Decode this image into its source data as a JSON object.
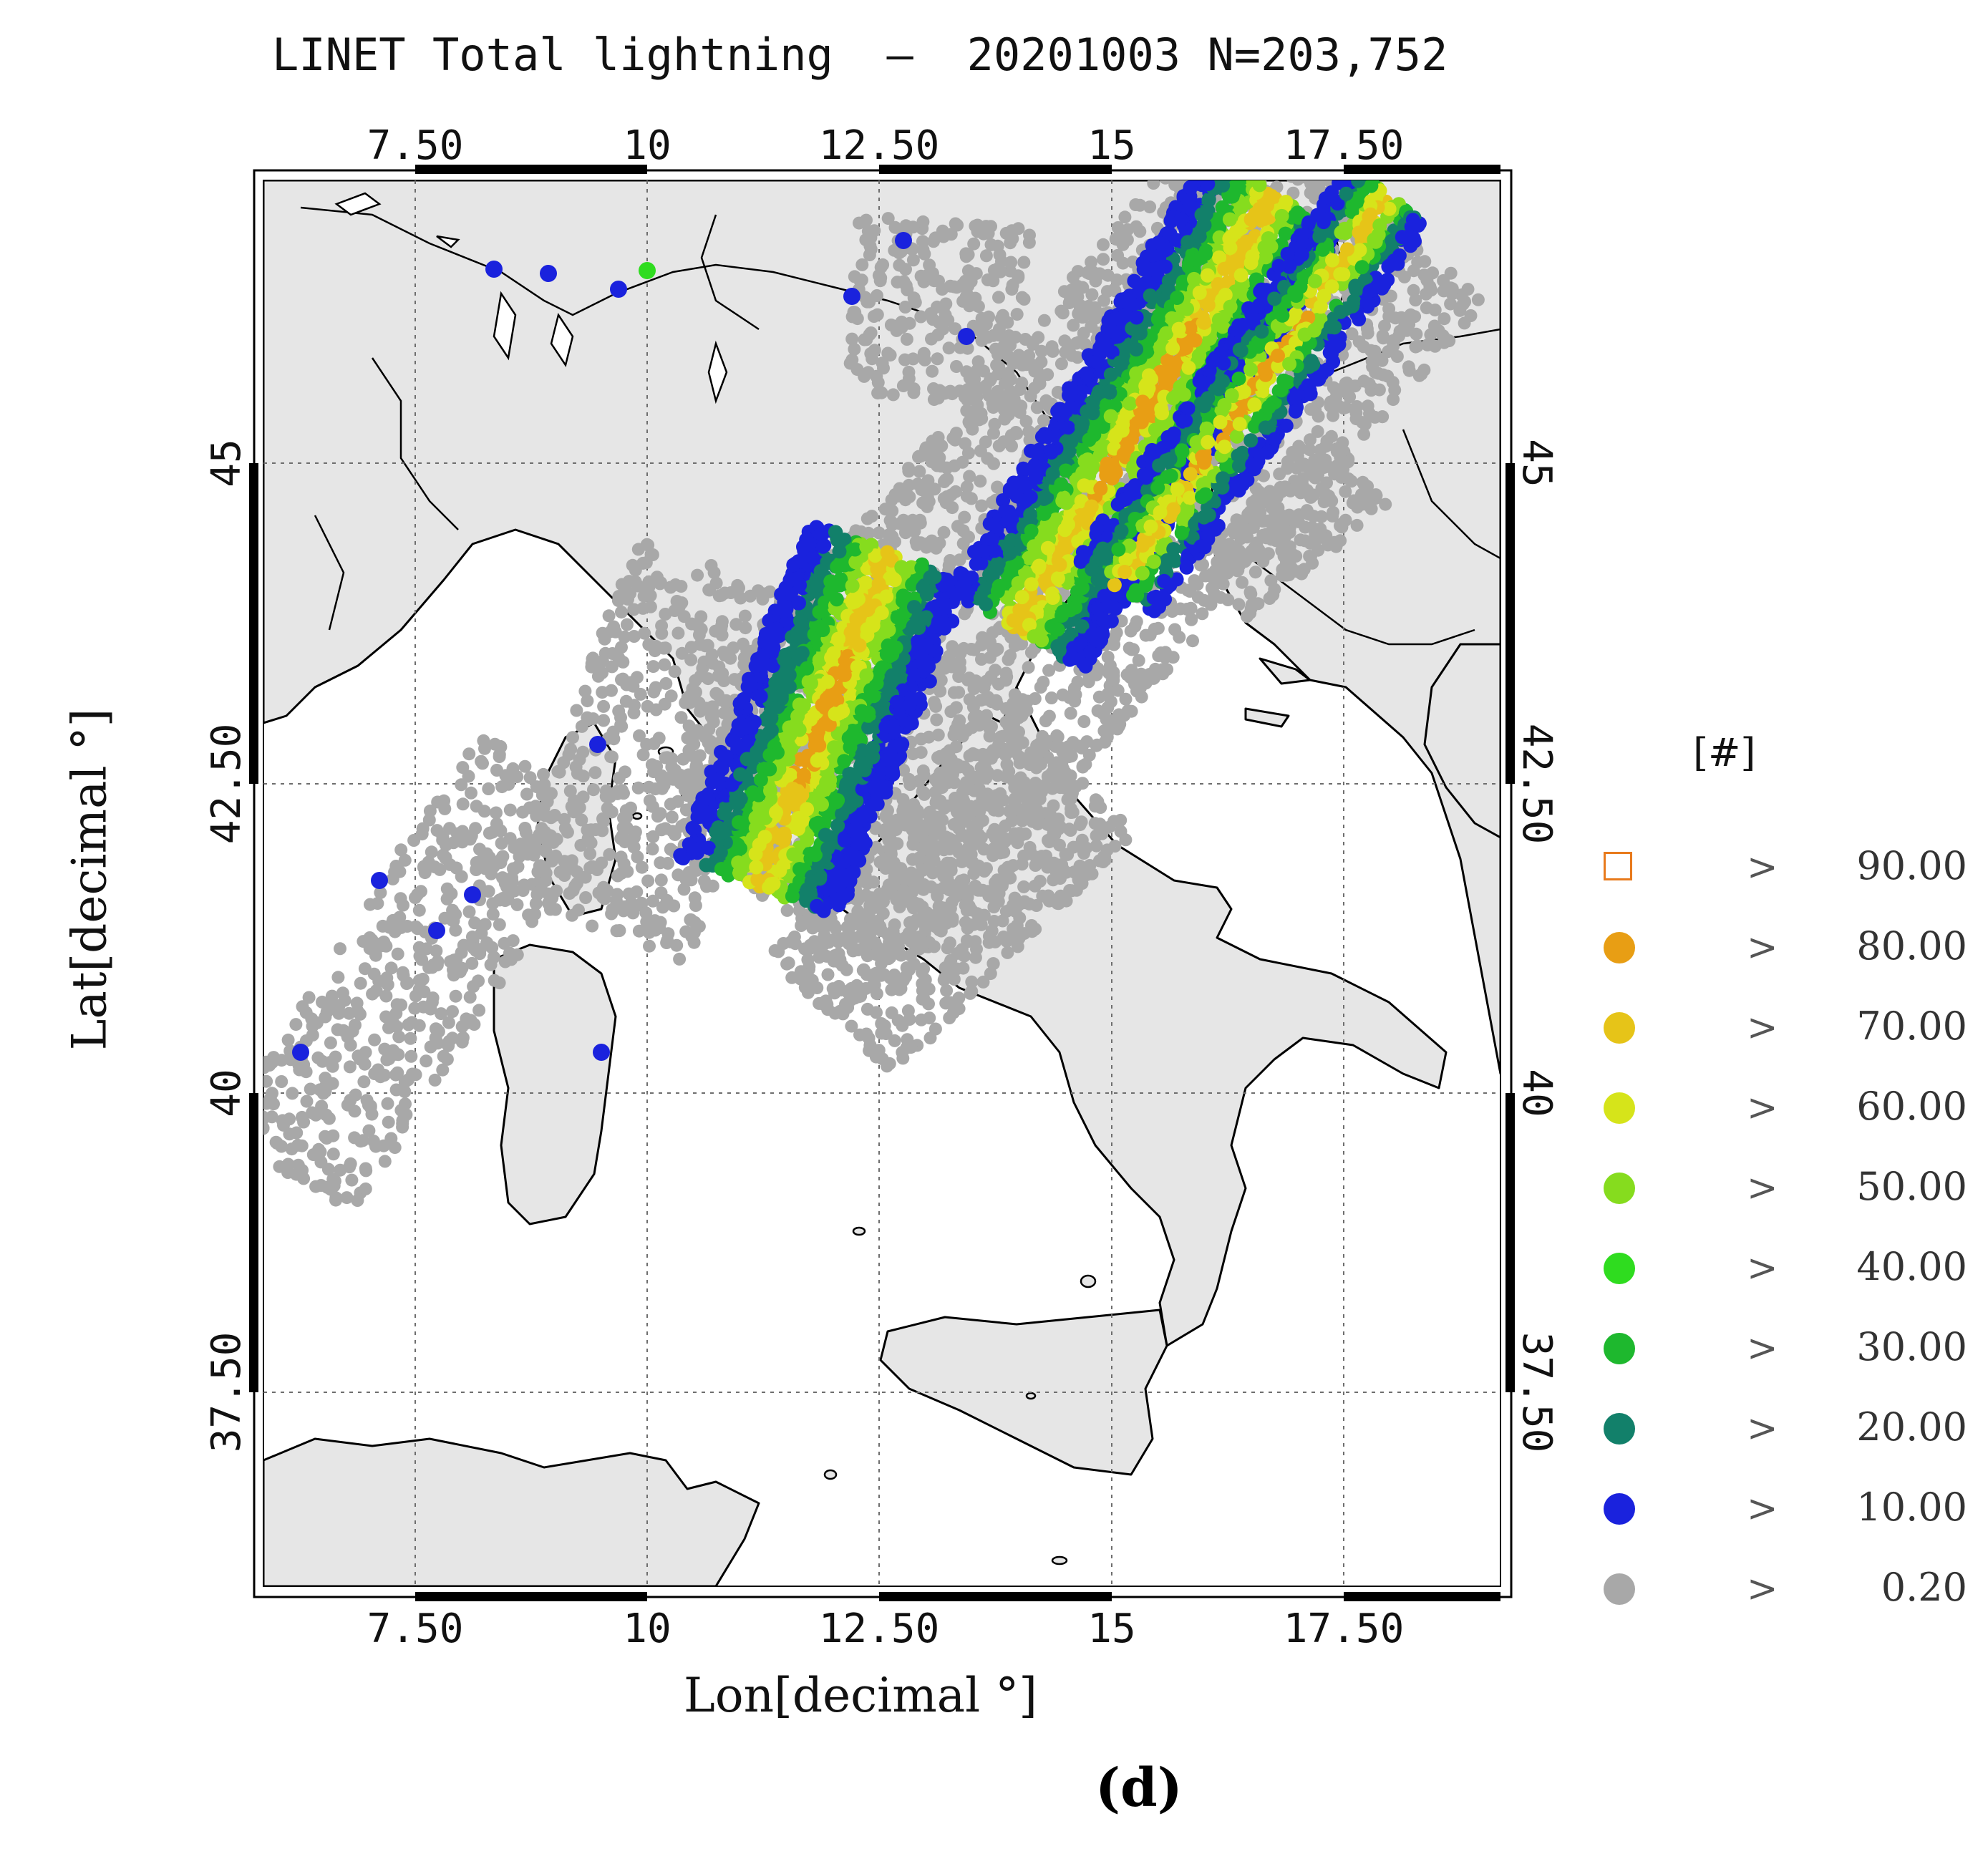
{
  "title": "LINET Total lightning  –  20201003 N=203,752",
  "caption": "(d)",
  "xaxis_label": "Lon[decimal °]",
  "yaxis_label": "Lat[decimal °]",
  "x_ticks": [
    "7.50",
    "10",
    "12.50",
    "15",
    "17.50"
  ],
  "y_ticks": [
    "37.50",
    "40",
    "42.50",
    "45"
  ],
  "legend": {
    "title": "[#]",
    "items": [
      {
        "operator": ">",
        "value": "90.00",
        "color": "#e87a1c",
        "shape": "open-square"
      },
      {
        "operator": ">",
        "value": "80.00",
        "color": "#e89e14",
        "shape": "dot"
      },
      {
        "operator": ">",
        "value": "70.00",
        "color": "#e6c418",
        "shape": "dot"
      },
      {
        "operator": ">",
        "value": "60.00",
        "color": "#d6e41a",
        "shape": "dot"
      },
      {
        "operator": ">",
        "value": "50.00",
        "color": "#86dc1e",
        "shape": "dot"
      },
      {
        "operator": ">",
        "value": "40.00",
        "color": "#2fdc1f",
        "shape": "dot"
      },
      {
        "operator": ">",
        "value": "30.00",
        "color": "#1eb82e",
        "shape": "dot"
      },
      {
        "operator": ">",
        "value": "20.00",
        "color": "#12806a",
        "shape": "dot"
      },
      {
        "operator": ">",
        "value": "10.00",
        "color": "#1a22dd",
        "shape": "dot"
      },
      {
        "operator": ">",
        "value": "0.20",
        "color": "#a8a8a8",
        "shape": "dot"
      }
    ]
  },
  "colors": {
    "land": "#e6e6e6",
    "sea": "#ffffff",
    "coast": "#000000",
    "grid": "#6e6e6e"
  }
}
